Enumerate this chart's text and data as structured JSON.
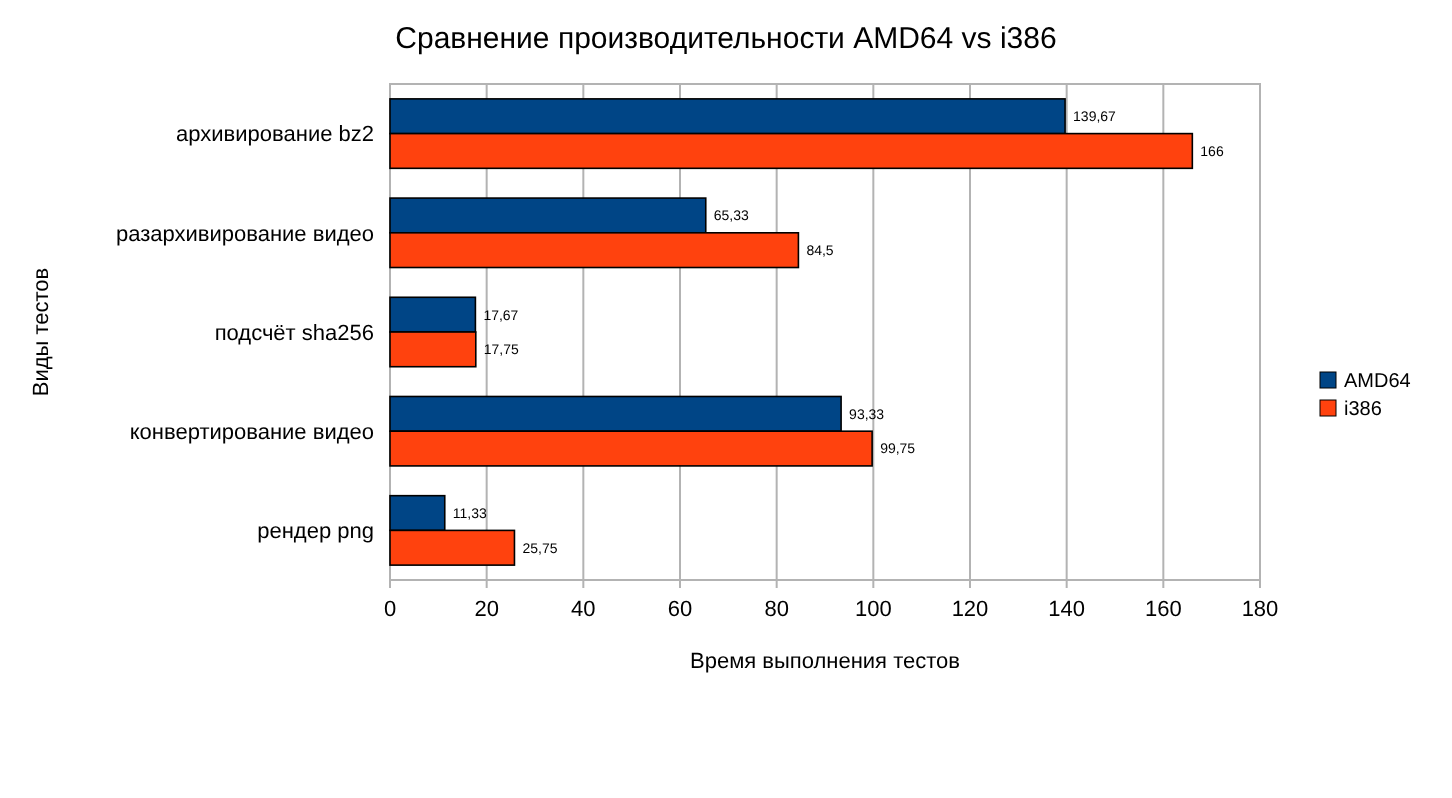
{
  "chart_data": {
    "type": "bar",
    "orientation": "horizontal",
    "title": "Сравнение производительности AMD64 vs i386",
    "xlabel": "Время выполнения тестов",
    "ylabel": "Виды тестов",
    "categories": [
      "архивирование bz2",
      "разархивирование видео",
      "подсчёт sha256",
      "конвертирование видео",
      "рендер png"
    ],
    "series": [
      {
        "name": "AMD64",
        "color": "#004586",
        "values": [
          139.67,
          65.33,
          17.67,
          93.33,
          11.33
        ],
        "value_labels": [
          "139,67",
          "65,33",
          "17,67",
          "93,33",
          "11,33"
        ]
      },
      {
        "name": "i386",
        "color": "#ff420e",
        "values": [
          166,
          84.5,
          17.75,
          99.75,
          25.75
        ],
        "value_labels": [
          "166",
          "84,5",
          "17,75",
          "99,75",
          "25,75"
        ]
      }
    ],
    "xlim": [
      0,
      180
    ],
    "xticks": [
      0,
      20,
      40,
      60,
      80,
      100,
      120,
      140,
      160,
      180
    ],
    "grid": "x",
    "legend": "right"
  }
}
